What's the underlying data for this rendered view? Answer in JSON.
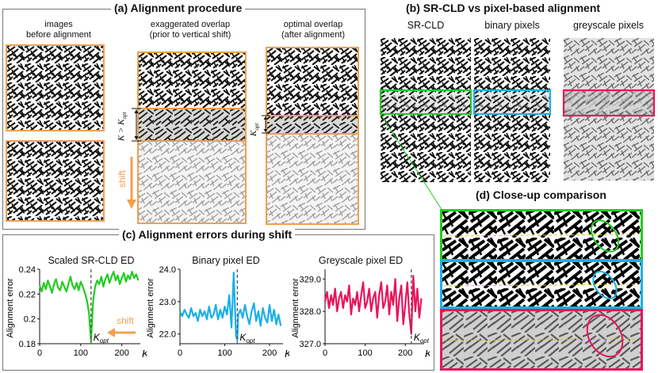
{
  "panel_a": {
    "title": "(a) Alignment procedure",
    "col1_label_line1": "images",
    "col1_label_line2": "before alignment",
    "col2_label_line1": "exaggerated overlap",
    "col2_label_line2": "(prior to vertical shift)",
    "col3_label_line1": "optimal overlap",
    "col3_label_line2": "(after alignment)",
    "k_gt_label": "K > K",
    "k_label": "K",
    "opt_sub": "opt",
    "shift_label": "shift"
  },
  "panel_b": {
    "title": "(b) SR-CLD vs pixel-based alignment",
    "col_srcld": "SR-CLD",
    "col_binary": "binary pixels",
    "col_grey": "greyscale pixels"
  },
  "panel_c": {
    "title": "(c) Alignment errors during shift",
    "y_axis_label": "Alignment error",
    "x_axis_label": "K",
    "kopt_main": "K",
    "kopt_sub": "opt",
    "shift_label": "shift"
  },
  "panel_d": {
    "title": "(d) Close-up comparison"
  },
  "colors": {
    "orange": "#f0a050",
    "green": "#22cc22",
    "blue": "#1ab0e8",
    "pink": "#e8155a",
    "panel_border": "#777777",
    "dashed": "#555555"
  },
  "chart_data": [
    {
      "type": "line",
      "title": "Scaled SR-CLD ED",
      "xlabel": "K",
      "ylabel": "Alignment error",
      "xlim": [
        0,
        245
      ],
      "ylim": [
        0.18,
        0.24
      ],
      "xticks": [
        "0",
        "100",
        "200"
      ],
      "yticks": [
        "0.18",
        "0.2",
        "0.22",
        "0.24"
      ],
      "kopt": 125,
      "color": "#22cc22",
      "series": [
        {
          "x": [
            0,
            5,
            10,
            15,
            20,
            25,
            30,
            35,
            40,
            45,
            50,
            55,
            60,
            65,
            70,
            75,
            80,
            85,
            90,
            95,
            100,
            105,
            110,
            115,
            120,
            125,
            130,
            135,
            140,
            145,
            150,
            155,
            160,
            165,
            170,
            175,
            180,
            185,
            190,
            195,
            200,
            205,
            210,
            215,
            220,
            225,
            230,
            235,
            240
          ],
          "values": [
            0.227,
            0.222,
            0.229,
            0.224,
            0.231,
            0.226,
            0.221,
            0.228,
            0.232,
            0.225,
            0.223,
            0.23,
            0.226,
            0.222,
            0.228,
            0.234,
            0.227,
            0.224,
            0.229,
            0.223,
            0.23,
            0.226,
            0.221,
            0.215,
            0.205,
            0.182,
            0.214,
            0.226,
            0.231,
            0.228,
            0.234,
            0.226,
            0.232,
            0.236,
            0.229,
            0.234,
            0.238,
            0.231,
            0.235,
            0.228,
            0.233,
            0.237,
            0.23,
            0.235,
            0.232,
            0.238,
            0.233,
            0.236,
            0.231
          ]
        }
      ]
    },
    {
      "type": "line",
      "title": "Binary pixel ED",
      "xlabel": "K",
      "ylabel": "",
      "xlim": [
        0,
        230
      ],
      "ylim": [
        21.7,
        24.0
      ],
      "xticks": [
        "0",
        "100",
        "200"
      ],
      "yticks": [
        "22.0",
        "23.0",
        "24.0"
      ],
      "kopt": 128,
      "color": "#1ab0e8",
      "series": [
        {
          "x": [
            0,
            5,
            10,
            15,
            20,
            25,
            30,
            35,
            40,
            45,
            50,
            55,
            60,
            65,
            70,
            75,
            80,
            85,
            90,
            95,
            100,
            105,
            110,
            115,
            120,
            125,
            128,
            130,
            135,
            140,
            145,
            150,
            155,
            160,
            165,
            170,
            175,
            180,
            185,
            190,
            195,
            200,
            205,
            210,
            215,
            220,
            225
          ],
          "values": [
            22.7,
            22.55,
            22.75,
            22.6,
            22.5,
            22.8,
            22.55,
            22.65,
            22.4,
            22.75,
            22.55,
            22.7,
            22.45,
            22.85,
            22.5,
            22.6,
            22.9,
            22.45,
            22.75,
            22.5,
            22.85,
            22.6,
            23.2,
            22.2,
            23.9,
            21.95,
            21.8,
            22.6,
            22.75,
            22.5,
            22.9,
            22.55,
            22.3,
            22.7,
            22.95,
            22.4,
            22.7,
            22.25,
            22.8,
            22.5,
            22.35,
            22.9,
            22.4,
            22.75,
            22.3,
            22.6,
            22.25
          ]
        }
      ]
    },
    {
      "type": "line",
      "title": "Greyscale pixel ED",
      "xlabel": "K",
      "ylabel": "",
      "xlim": [
        0,
        245
      ],
      "ylim": [
        327.0,
        329.3
      ],
      "xticks": [
        "0",
        "100",
        "200"
      ],
      "yticks": [
        "327.0",
        "328.0",
        "329.0"
      ],
      "kopt": 215,
      "color": "#e8155a",
      "series": [
        {
          "x": [
            0,
            5,
            10,
            15,
            20,
            25,
            30,
            35,
            40,
            45,
            50,
            55,
            60,
            65,
            70,
            75,
            80,
            85,
            90,
            95,
            100,
            105,
            110,
            115,
            120,
            125,
            130,
            135,
            140,
            145,
            150,
            155,
            160,
            165,
            170,
            175,
            180,
            185,
            190,
            195,
            200,
            205,
            210,
            215,
            220,
            225,
            230,
            235,
            240
          ],
          "values": [
            328.3,
            328.6,
            328.1,
            328.5,
            328.2,
            328.7,
            328.0,
            328.4,
            328.6,
            328.1,
            328.5,
            328.3,
            328.8,
            327.9,
            328.4,
            328.2,
            328.6,
            328.0,
            328.5,
            328.9,
            328.1,
            328.3,
            328.7,
            328.0,
            328.4,
            328.6,
            327.8,
            328.5,
            328.9,
            328.1,
            328.3,
            328.8,
            327.9,
            328.6,
            328.2,
            329.0,
            327.7,
            328.4,
            328.8,
            327.6,
            328.2,
            328.9,
            327.9,
            327.3,
            329.1,
            328.0,
            328.7,
            327.8,
            328.4
          ]
        }
      ]
    }
  ]
}
